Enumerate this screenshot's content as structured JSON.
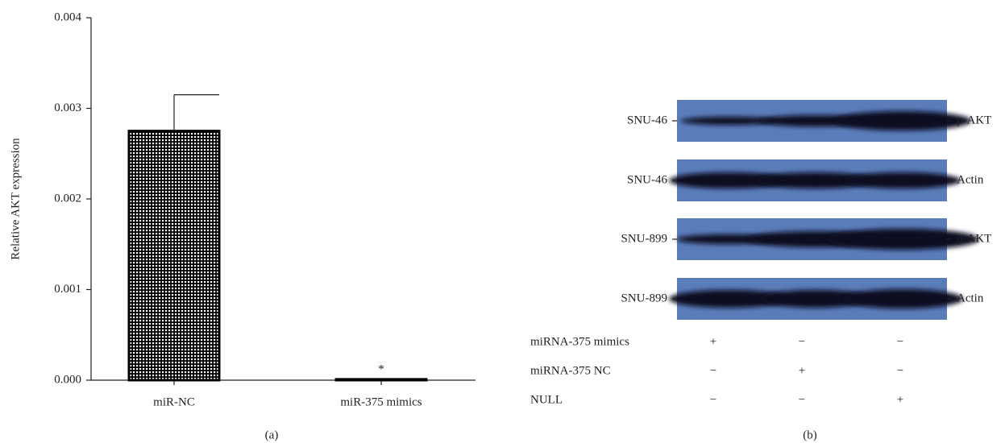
{
  "chart_data": {
    "type": "bar",
    "ylabel": "Relative AKT expression",
    "caption": "(a)",
    "categories": [
      "miR-NC",
      "miR-375 mimics"
    ],
    "values": [
      0.00275,
      1e-05
    ],
    "errors": [
      0.0004,
      null
    ],
    "value_annotations": [
      null,
      "*"
    ],
    "ylim": [
      0,
      0.004
    ],
    "yticks": [
      {
        "value": 0,
        "label": "0.000"
      },
      {
        "value": 0.001,
        "label": "0.001"
      },
      {
        "value": 0.002,
        "label": "0.002"
      },
      {
        "value": 0.003,
        "label": "0.003"
      },
      {
        "value": 0.004,
        "label": "0.004"
      }
    ],
    "color": "#000000"
  },
  "blot": {
    "caption": "(b)",
    "rows": [
      {
        "left": "SNU-46",
        "right": "p-AKT"
      },
      {
        "left": "SNU-46",
        "right": "Actin"
      },
      {
        "left": "SNU-899",
        "right": "p-AKT"
      },
      {
        "left": "SNU-899",
        "right": "Actin"
      }
    ],
    "treatments": [
      {
        "label": "miRNA-375 mimics",
        "signs": [
          "+",
          "−",
          "−"
        ]
      },
      {
        "label": "miRNA-375 NC",
        "signs": [
          "−",
          "+",
          "−"
        ]
      },
      {
        "label": "NULL",
        "signs": [
          "−",
          "−",
          "+"
        ]
      }
    ]
  }
}
